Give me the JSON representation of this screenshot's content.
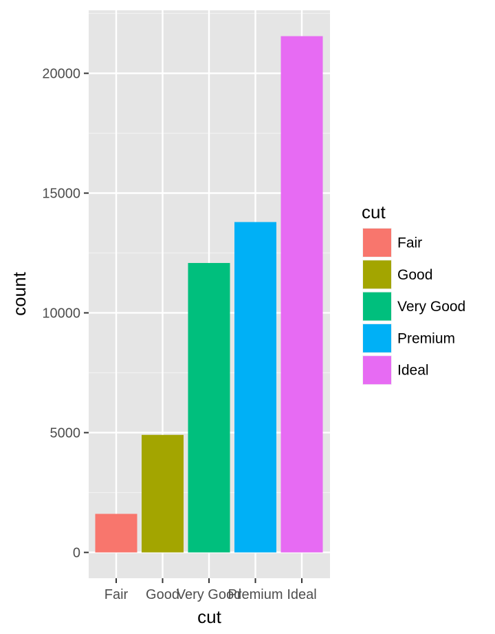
{
  "chart_data": {
    "type": "bar",
    "categories": [
      "Fair",
      "Good",
      "Very Good",
      "Premium",
      "Ideal"
    ],
    "values": [
      1610,
      4906,
      12082,
      13791,
      21551
    ],
    "colors": [
      "#F8766D",
      "#A3A500",
      "#00BF7D",
      "#00B0F6",
      "#E76BF3"
    ],
    "xlabel": "cut",
    "ylabel": "count",
    "ylim": [
      -1078,
      22629
    ],
    "yticks": [
      0,
      5000,
      10000,
      15000,
      20000
    ],
    "ytick_labels": [
      "0",
      "5000",
      "10000",
      "15000",
      "20000"
    ],
    "grid": true,
    "background": "#E5E5E5",
    "legend": {
      "title": "cut",
      "position": "right",
      "items": [
        "Fair",
        "Good",
        "Very Good",
        "Premium",
        "Ideal"
      ]
    }
  }
}
